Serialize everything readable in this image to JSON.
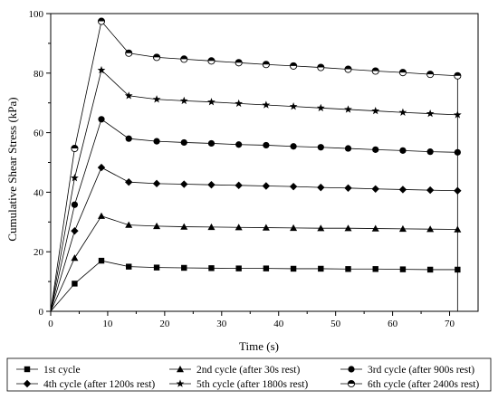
{
  "chart_data": {
    "type": "line",
    "title": "",
    "xlabel": "Time (s)",
    "ylabel": "Cumulative Shear Stress (kPa)",
    "xlim": [
      0,
      75
    ],
    "ylim": [
      0,
      100
    ],
    "x_ticks": [
      "0",
      "10",
      "20",
      "30",
      "40",
      "50",
      "60",
      "70"
    ],
    "y_ticks": [
      "0",
      "20",
      "40",
      "60",
      "80",
      "100"
    ],
    "grid": false,
    "legend_position": "bottom",
    "x": [
      0,
      4.2,
      8.9,
      13.7,
      18.6,
      23.4,
      28.2,
      33.0,
      37.8,
      42.6,
      47.4,
      52.2,
      57.0,
      61.8,
      66.6,
      71.4
    ],
    "series": [
      {
        "name": "1st cycle",
        "marker": "square",
        "values": [
          0,
          9.3,
          17.0,
          15.0,
          14.7,
          14.6,
          14.5,
          14.4,
          14.4,
          14.3,
          14.3,
          14.2,
          14.2,
          14.1,
          14.0,
          14.0
        ]
      },
      {
        "name": "2nd cycle (after 30s rest)",
        "marker": "triangle",
        "values": [
          0,
          17.9,
          32.0,
          29.0,
          28.6,
          28.4,
          28.3,
          28.2,
          28.1,
          28.0,
          27.9,
          27.9,
          27.8,
          27.7,
          27.6,
          27.5
        ]
      },
      {
        "name": "3rd cycle (after 900s rest)",
        "marker": "circle",
        "values": [
          0,
          35.8,
          64.5,
          58.0,
          57.1,
          56.7,
          56.4,
          56.0,
          55.8,
          55.4,
          55.1,
          54.7,
          54.3,
          54.0,
          53.6,
          53.4
        ]
      },
      {
        "name": "4th cycle (after 1200s rest)",
        "marker": "diamond",
        "values": [
          0,
          27.0,
          48.3,
          43.4,
          42.9,
          42.7,
          42.5,
          42.3,
          42.1,
          41.9,
          41.6,
          41.4,
          41.1,
          40.9,
          40.7,
          40.5
        ]
      },
      {
        "name": "5th cycle (after 1800s rest)",
        "marker": "star",
        "values": [
          0,
          44.8,
          81.0,
          72.4,
          71.2,
          70.7,
          70.3,
          69.8,
          69.3,
          68.8,
          68.3,
          67.8,
          67.3,
          66.8,
          66.4,
          66.0
        ]
      },
      {
        "name": "6th cycle (after 2400s rest)",
        "marker": "half-circle",
        "values": [
          0,
          54.7,
          97.4,
          86.7,
          85.3,
          84.7,
          84.1,
          83.5,
          82.9,
          82.4,
          81.9,
          81.3,
          80.7,
          80.2,
          79.6,
          79.1
        ]
      }
    ],
    "vertical_drop": {
      "x": 71.4,
      "from": 79.1,
      "to": 0
    }
  }
}
